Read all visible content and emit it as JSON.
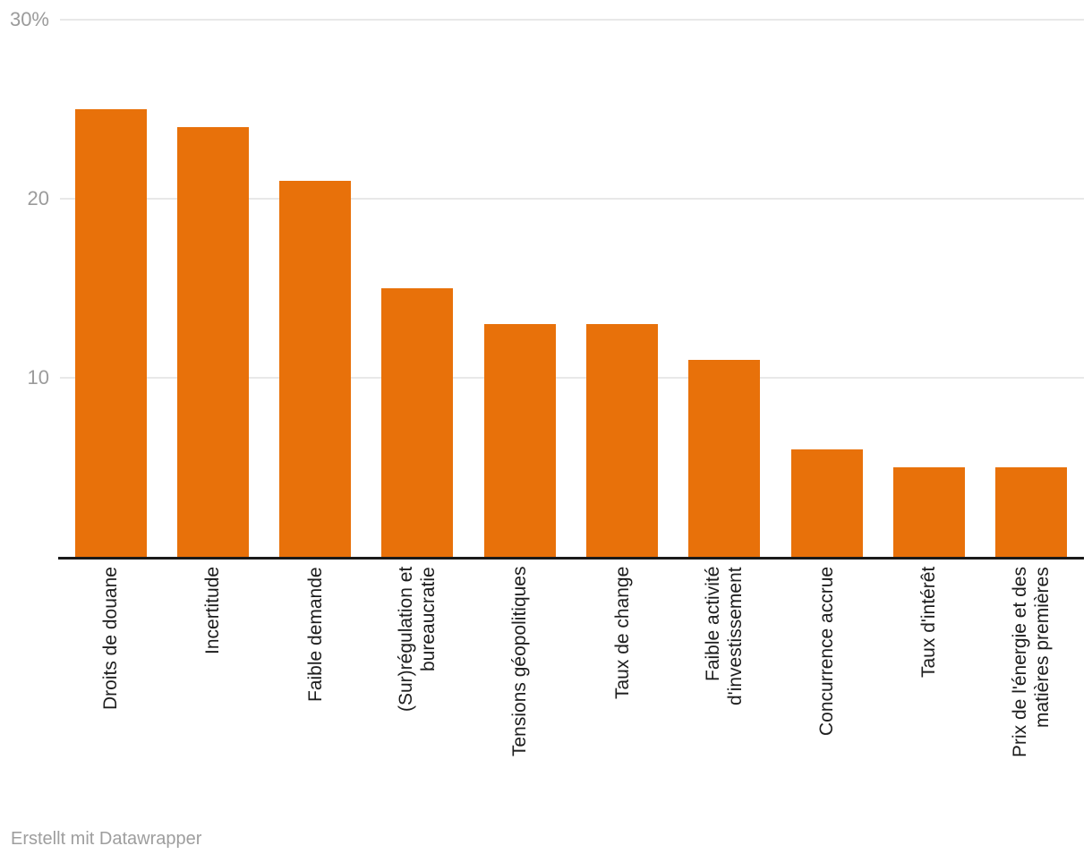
{
  "chart_data": {
    "type": "bar",
    "title": "",
    "categories": [
      "Droits de douane",
      "Incertitude",
      "Faible demande",
      "(Sur)régulation et\nbureaucratie",
      "Tensions géopolitiques",
      "Taux de change",
      "Faible activité\nd'investissement",
      "Concurrence accrue",
      "Taux d'intérêt",
      "Prix de l'énergie et des\nmatières premières"
    ],
    "values": [
      25,
      24,
      21,
      15,
      13,
      13,
      11,
      6,
      5,
      5
    ],
    "unit": "%",
    "xlabel": "",
    "ylabel": "",
    "ylim": [
      0,
      30
    ],
    "y_ticks": [
      {
        "label": "30%",
        "value": 30
      },
      {
        "label": "20",
        "value": 20
      },
      {
        "label": "10",
        "value": 10
      }
    ],
    "grid": "horizontal",
    "legend": "none",
    "colors": {
      "bar": "#E8710A",
      "grid": "#E8E8E8",
      "axis": "#1A1A1A",
      "tick_label": "#9B9B9B",
      "category_label": "#1D1D1D",
      "footer_text": "#9E9E9E"
    }
  },
  "footer": {
    "text": "Erstellt mit Datawrapper"
  }
}
